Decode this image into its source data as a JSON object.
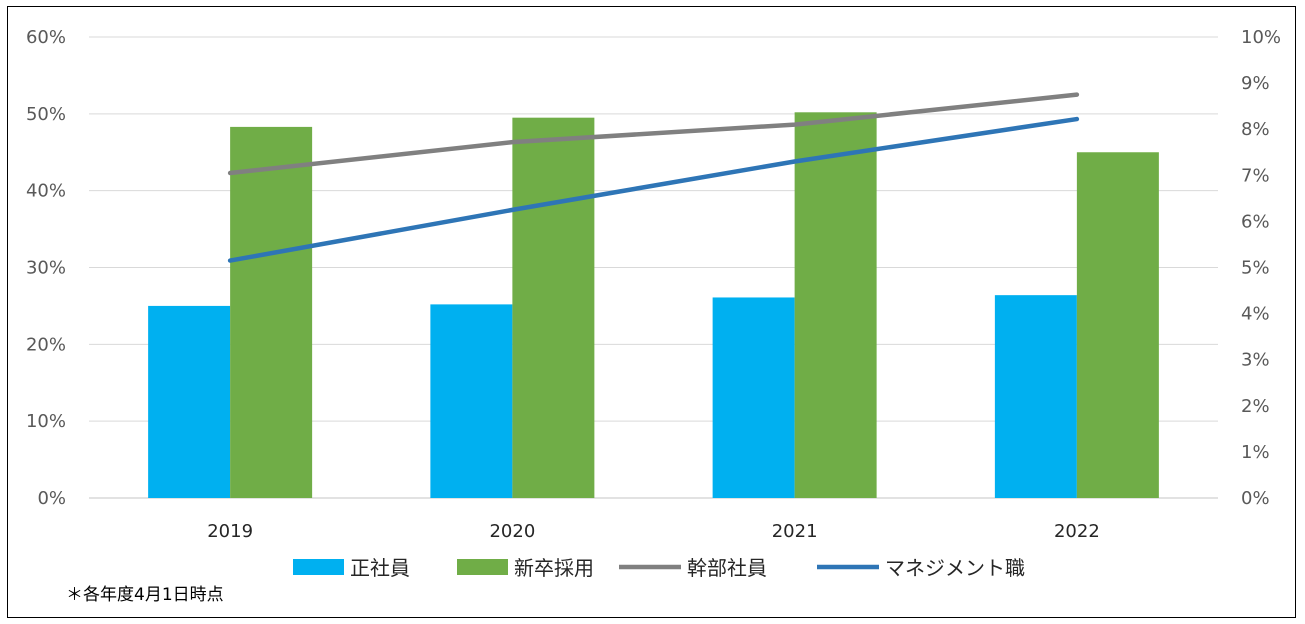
{
  "chart_data": {
    "type": "bar",
    "categories": [
      "2019",
      "2020",
      "2021",
      "2022"
    ],
    "bar_series": [
      {
        "name": "正社員",
        "values": [
          25.0,
          25.2,
          26.1,
          26.4
        ],
        "color": "#00B0F0"
      },
      {
        "name": "新卒採用",
        "values": [
          48.3,
          49.5,
          50.2,
          45.0
        ],
        "color": "#70AD47"
      }
    ],
    "line_series": [
      {
        "name": "幹部社員",
        "values": [
          7.05,
          7.72,
          8.1,
          8.75
        ],
        "color": "#808080",
        "axis": "right"
      },
      {
        "name": "マネジメント職",
        "values": [
          5.15,
          6.25,
          7.3,
          8.22
        ],
        "color": "#2E75B6",
        "axis": "right"
      }
    ],
    "y_left": {
      "ylim": [
        0,
        60
      ],
      "ticks": [
        "0%",
        "10%",
        "20%",
        "30%",
        "40%",
        "50%",
        "60%"
      ]
    },
    "y_right": {
      "ylim": [
        0,
        10
      ],
      "ticks": [
        "0%",
        "1%",
        "2%",
        "3%",
        "4%",
        "5%",
        "6%",
        "7%",
        "8%",
        "9%",
        "10%"
      ]
    },
    "grid": true,
    "legend_position": "bottom",
    "note": "＊各年度4月1日時点"
  }
}
